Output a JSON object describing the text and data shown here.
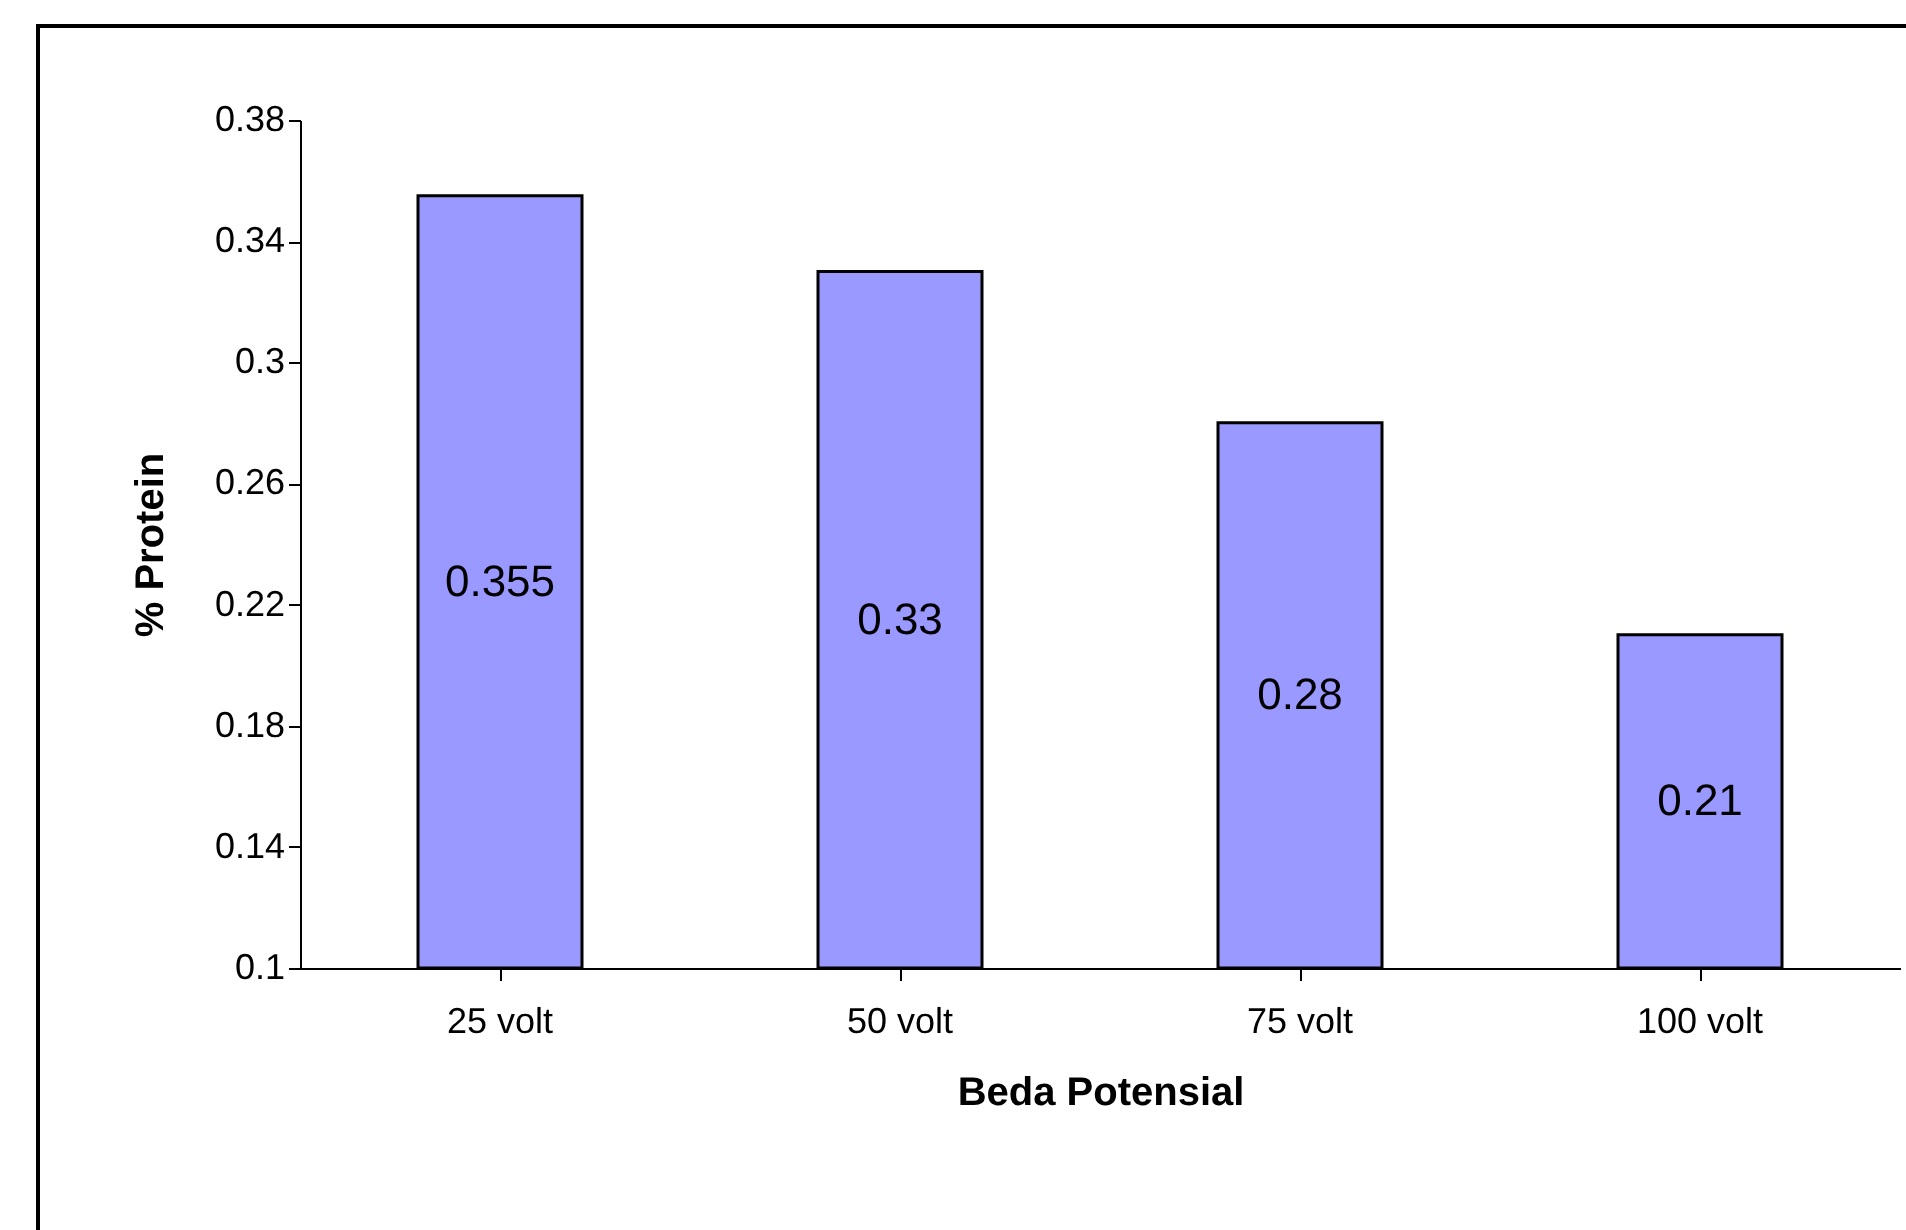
{
  "chart_data": {
    "type": "bar",
    "xlabel": "Beda Potensial",
    "ylabel": "% Protein",
    "categories": [
      "25 volt",
      "50 volt",
      "75 volt",
      "100 volt"
    ],
    "values": [
      0.355,
      0.33,
      0.28,
      0.21
    ],
    "color": "#9999ff",
    "ylim": [
      0.1,
      0.38
    ],
    "yticks": [
      0.1,
      0.14,
      0.18,
      0.22,
      0.26,
      0.3,
      0.34,
      0.38
    ],
    "grid": false,
    "data_labels": true
  }
}
